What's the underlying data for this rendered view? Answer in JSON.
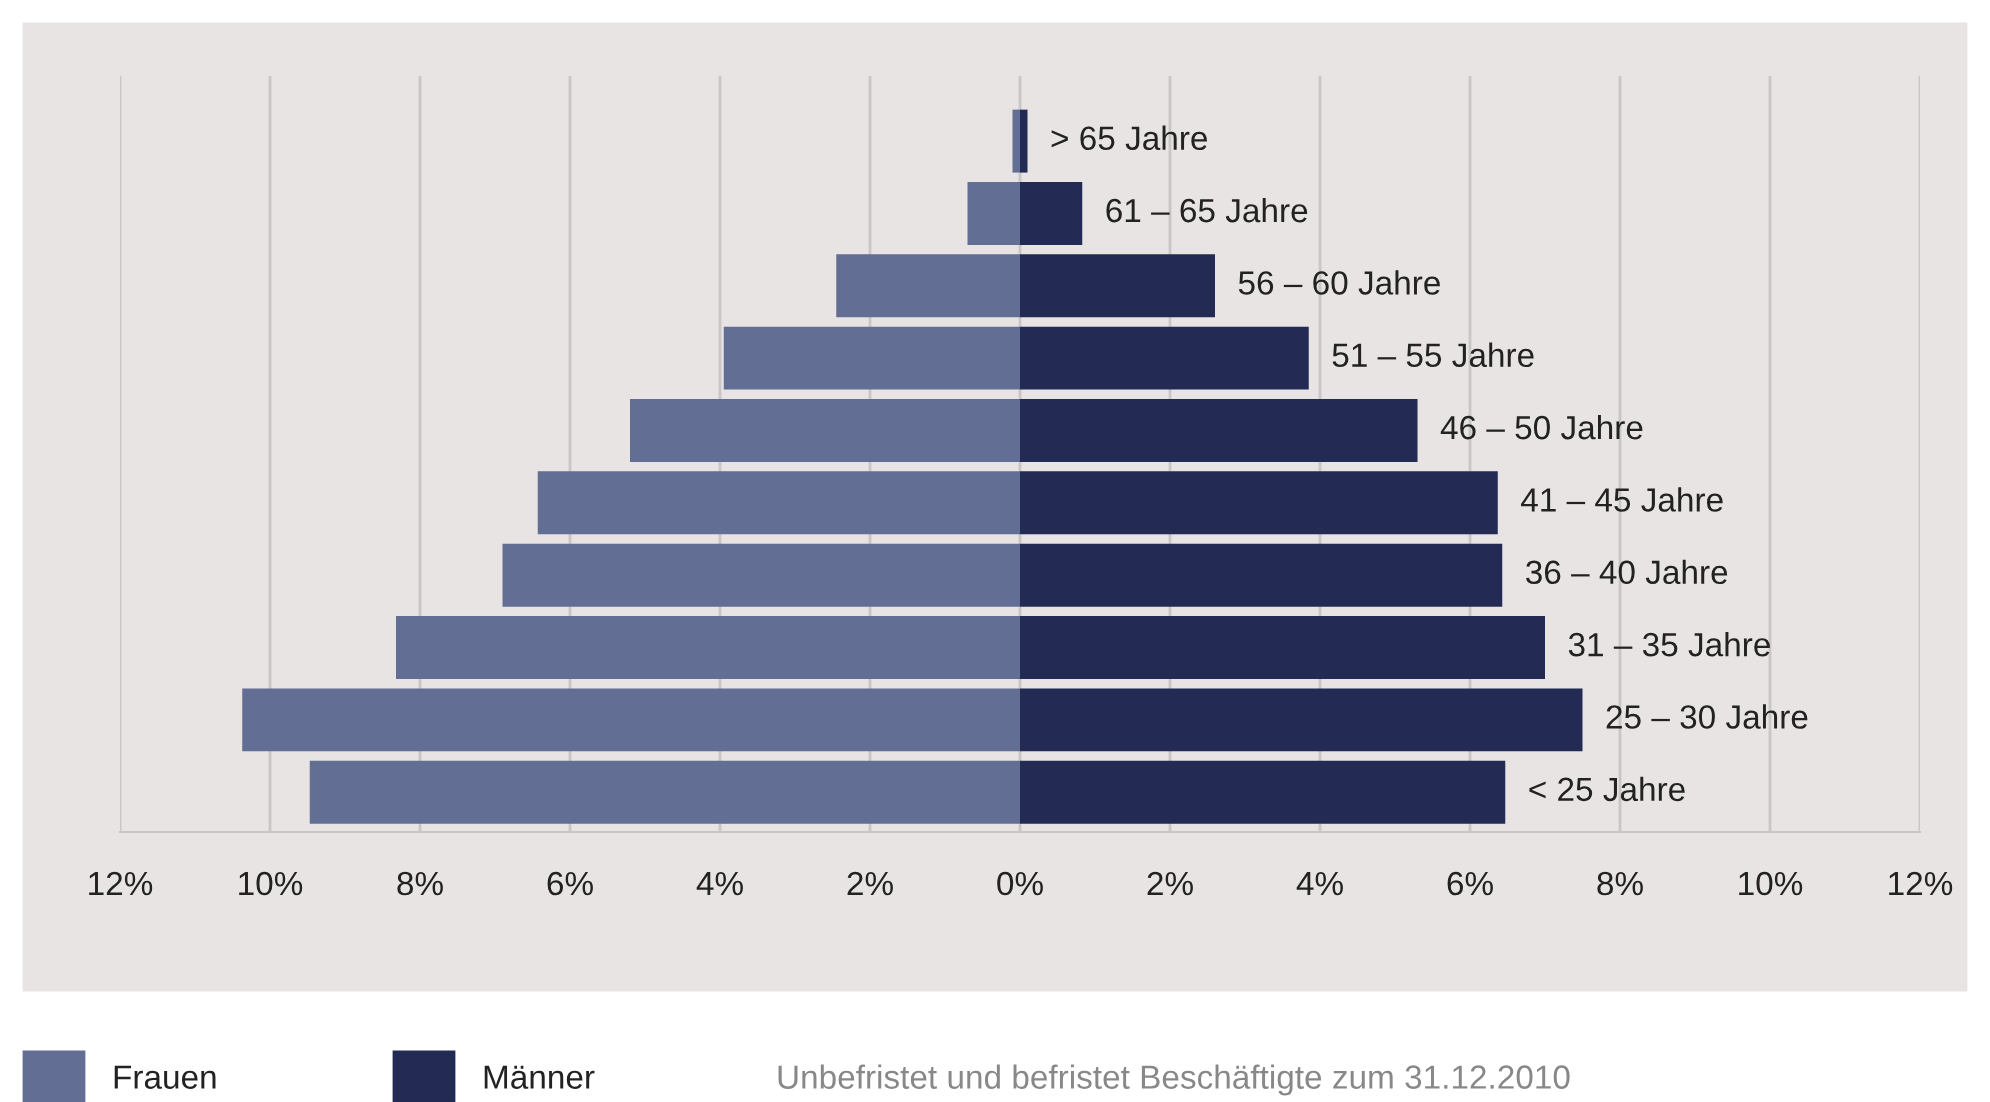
{
  "chart_data": {
    "type": "bar",
    "orientation": "horizontal",
    "stacked": true,
    "categories": [
      "> 65 Jahre",
      "61 – 65 Jahre",
      "56 – 60 Jahre",
      "51 – 55 Jahre",
      "46 – 50 Jahre",
      "41 – 45 Jahre",
      "36 – 40 Jahre",
      "31 – 35 Jahre",
      "25 – 30 Jahre",
      "< 25 Jahre"
    ],
    "series": [
      {
        "name": "Frauen",
        "color": "#626e93",
        "values": [
          -0.1,
          -0.7,
          -2.45,
          -3.95,
          -5.2,
          -6.43,
          -6.9,
          -8.32,
          -10.37,
          -9.47
        ]
      },
      {
        "name": "Männer",
        "color": "#232b55",
        "values": [
          0.1,
          0.83,
          2.6,
          3.85,
          5.3,
          6.37,
          6.43,
          7.0,
          7.5,
          6.47
        ]
      }
    ],
    "xlim": [
      -12,
      12
    ],
    "xticks": [
      {
        "value": -12,
        "label": "12%"
      },
      {
        "value": -10,
        "label": "10%"
      },
      {
        "value": -8,
        "label": "8%"
      },
      {
        "value": -6,
        "label": "6%"
      },
      {
        "value": -4,
        "label": "4%"
      },
      {
        "value": -2,
        "label": "2%"
      },
      {
        "value": 0,
        "label": "0%"
      },
      {
        "value": 2,
        "label": "2%"
      },
      {
        "value": 4,
        "label": "4%"
      },
      {
        "value": 6,
        "label": "6%"
      },
      {
        "value": 8,
        "label": "8%"
      },
      {
        "value": 10,
        "label": "10%"
      },
      {
        "value": 12,
        "label": "12%"
      }
    ],
    "grid": "x",
    "tick_labels": "x",
    "legend": "bottom left",
    "annotations": [
      "Unbefristet und befristet Beschäftigte zum 31.12.2010"
    ]
  }
}
